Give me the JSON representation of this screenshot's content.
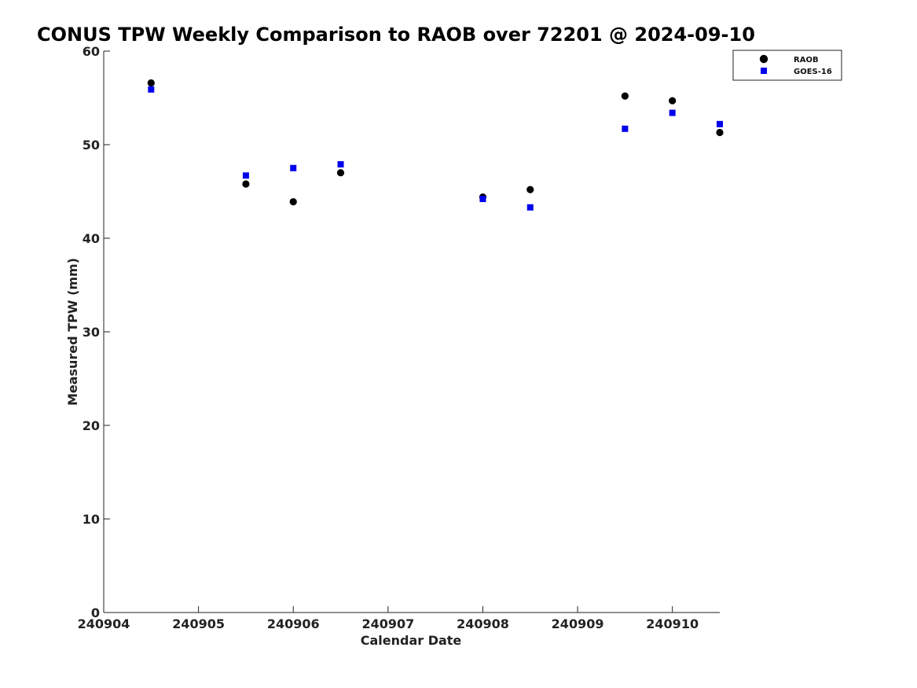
{
  "chart_data": {
    "type": "scatter",
    "title": "CONUS TPW Weekly Comparison to RAOB over 72201 @ 2024-09-10",
    "xlabel": "Calendar Date",
    "ylabel": "Measured TPW (mm)",
    "xlim": [
      "240904",
      "240910.5"
    ],
    "ylim": [
      0,
      60
    ],
    "x_ticks": [
      "240904",
      "240905",
      "240906",
      "240907",
      "240908",
      "240909",
      "240910"
    ],
    "y_ticks": [
      "0",
      "10",
      "20",
      "30",
      "40",
      "50",
      "60"
    ],
    "grid": false,
    "legend_position": "top-right",
    "series": [
      {
        "name": "RAOB",
        "marker": "circle",
        "color": "#000000",
        "points": [
          {
            "x": 240904.5,
            "y": 56.6
          },
          {
            "x": 240905.5,
            "y": 45.8
          },
          {
            "x": 240906.0,
            "y": 43.9
          },
          {
            "x": 240906.5,
            "y": 47.0
          },
          {
            "x": 240908.0,
            "y": 44.4
          },
          {
            "x": 240908.5,
            "y": 45.2
          },
          {
            "x": 240909.5,
            "y": 55.2
          },
          {
            "x": 240910.0,
            "y": 54.7
          },
          {
            "x": 240910.5,
            "y": 51.3
          }
        ]
      },
      {
        "name": "GOES-16",
        "marker": "square",
        "color": "#0000ee",
        "points": [
          {
            "x": 240904.5,
            "y": 55.9
          },
          {
            "x": 240905.5,
            "y": 46.7
          },
          {
            "x": 240906.0,
            "y": 47.5
          },
          {
            "x": 240906.5,
            "y": 47.9
          },
          {
            "x": 240908.0,
            "y": 44.2
          },
          {
            "x": 240908.5,
            "y": 43.3
          },
          {
            "x": 240909.5,
            "y": 51.7
          },
          {
            "x": 240910.0,
            "y": 53.4
          },
          {
            "x": 240910.5,
            "y": 52.2
          }
        ]
      }
    ]
  }
}
